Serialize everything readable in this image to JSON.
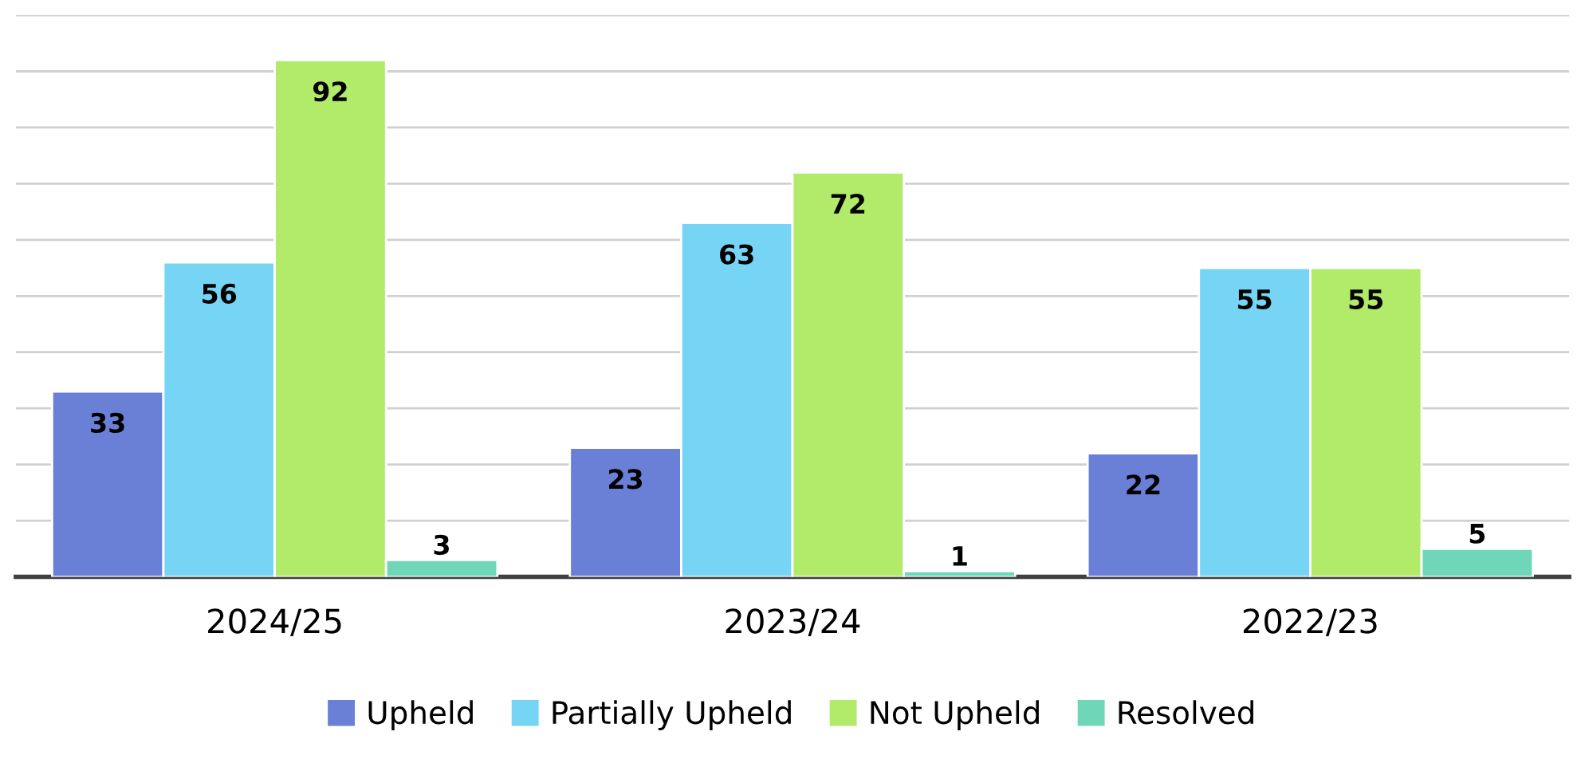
{
  "chart_data": {
    "type": "bar",
    "categories": [
      "2024/25",
      "2023/24",
      "2022/23"
    ],
    "series": [
      {
        "name": "Upheld",
        "color": "#6a7fd6",
        "values": [
          33,
          23,
          22
        ]
      },
      {
        "name": "Partially Upheld",
        "color": "#76d4f4",
        "values": [
          56,
          63,
          55
        ]
      },
      {
        "name": "Not Upheld",
        "color": "#b2ea6a",
        "values": [
          92,
          72,
          55
        ]
      },
      {
        "name": "Resolved",
        "color": "#6fd6b8",
        "values": [
          3,
          1,
          5
        ]
      }
    ],
    "ylim": [
      0,
      100
    ],
    "yticks": [
      {
        "value": 0,
        "label": null
      },
      {
        "value": 10,
        "label": null
      },
      {
        "value": 20,
        "label": null
      },
      {
        "value": 30,
        "label": null
      },
      {
        "value": 40,
        "label": null
      },
      {
        "value": 50,
        "label": null
      },
      {
        "value": 60,
        "label": null
      },
      {
        "value": 70,
        "label": null
      },
      {
        "value": 80,
        "label": null
      },
      {
        "value": 90,
        "label": null
      },
      {
        "value": 100,
        "label": null
      }
    ],
    "tick_labels": "x",
    "grid": "y",
    "legend": "bottom",
    "data_labels": true
  }
}
